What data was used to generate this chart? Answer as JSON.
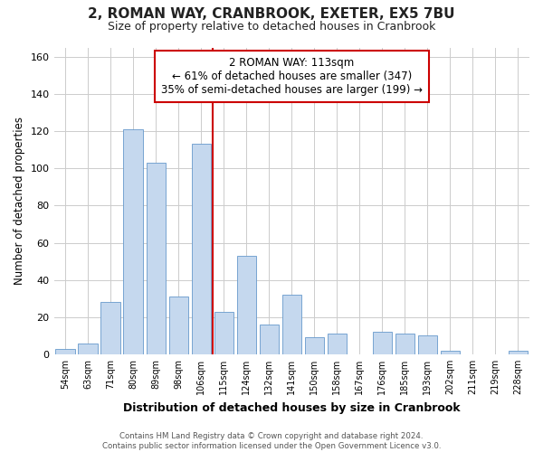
{
  "title": "2, ROMAN WAY, CRANBROOK, EXETER, EX5 7BU",
  "subtitle": "Size of property relative to detached houses in Cranbrook",
  "xlabel": "Distribution of detached houses by size in Cranbrook",
  "ylabel": "Number of detached properties",
  "bar_labels": [
    "54sqm",
    "63sqm",
    "71sqm",
    "80sqm",
    "89sqm",
    "98sqm",
    "106sqm",
    "115sqm",
    "124sqm",
    "132sqm",
    "141sqm",
    "150sqm",
    "158sqm",
    "167sqm",
    "176sqm",
    "185sqm",
    "193sqm",
    "202sqm",
    "211sqm",
    "219sqm",
    "228sqm"
  ],
  "bar_values": [
    3,
    6,
    28,
    121,
    103,
    31,
    113,
    23,
    53,
    16,
    32,
    9,
    11,
    0,
    12,
    11,
    10,
    2,
    0,
    0,
    2
  ],
  "bar_color": "#c5d8ee",
  "bar_edge_color": "#6699cc",
  "vline_color": "#cc0000",
  "ylim": [
    0,
    165
  ],
  "yticks": [
    0,
    20,
    40,
    60,
    80,
    100,
    120,
    140,
    160
  ],
  "annotation_title": "2 ROMAN WAY: 113sqm",
  "annotation_line1": "← 61% of detached houses are smaller (347)",
  "annotation_line2": "35% of semi-detached houses are larger (199) →",
  "annotation_box_color": "#cc0000",
  "footer_line1": "Contains HM Land Registry data © Crown copyright and database right 2024.",
  "footer_line2": "Contains public sector information licensed under the Open Government Licence v3.0.",
  "background_color": "#ffffff",
  "plot_bg_color": "#ffffff",
  "grid_color": "#cccccc"
}
